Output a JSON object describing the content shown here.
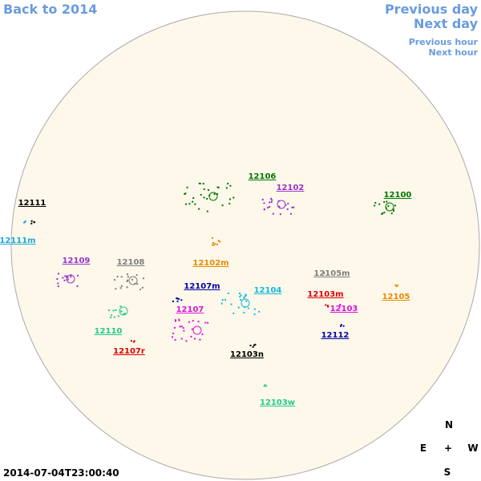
{
  "nav": {
    "back": "Back to 2014",
    "previous_day": "Previous day",
    "next_day": "Next day",
    "previous_hour": "Previous hour",
    "next_hour": "Next hour"
  },
  "regions": [
    {
      "label": "12111",
      "color": "#000000"
    },
    {
      "label": "12111m",
      "color": "#1aa8dc"
    },
    {
      "label": "12109",
      "color": "#9933cc"
    },
    {
      "label": "12108",
      "color": "#7f7f7f"
    },
    {
      "label": "12110",
      "color": "#22cc88"
    },
    {
      "label": "12107r",
      "color": "#dd0000"
    },
    {
      "label": "12107",
      "color": "#dd11dd"
    },
    {
      "label": "12107m",
      "color": "#0000aa"
    },
    {
      "label": "12102m",
      "color": "#e88a00"
    },
    {
      "label": "12106",
      "color": "#007700"
    },
    {
      "label": "12102",
      "color": "#9933cc"
    },
    {
      "label": "12100",
      "color": "#007700"
    },
    {
      "label": "12104",
      "color": "#11b8e0"
    },
    {
      "label": "12105m",
      "color": "#7f7f7f"
    },
    {
      "label": "12103m",
      "color": "#dd0000"
    },
    {
      "label": "12103",
      "color": "#dd11dd"
    },
    {
      "label": "12105",
      "color": "#e88a00"
    },
    {
      "label": "12112",
      "color": "#0000aa"
    },
    {
      "label": "12103n",
      "color": "#000000"
    },
    {
      "label": "12103w",
      "color": "#22cc88"
    }
  ],
  "timestamp": "2014-07-04T23:00:40",
  "compass": {
    "north": "N",
    "east": "E",
    "center": "+",
    "west": "W",
    "south": "S"
  }
}
